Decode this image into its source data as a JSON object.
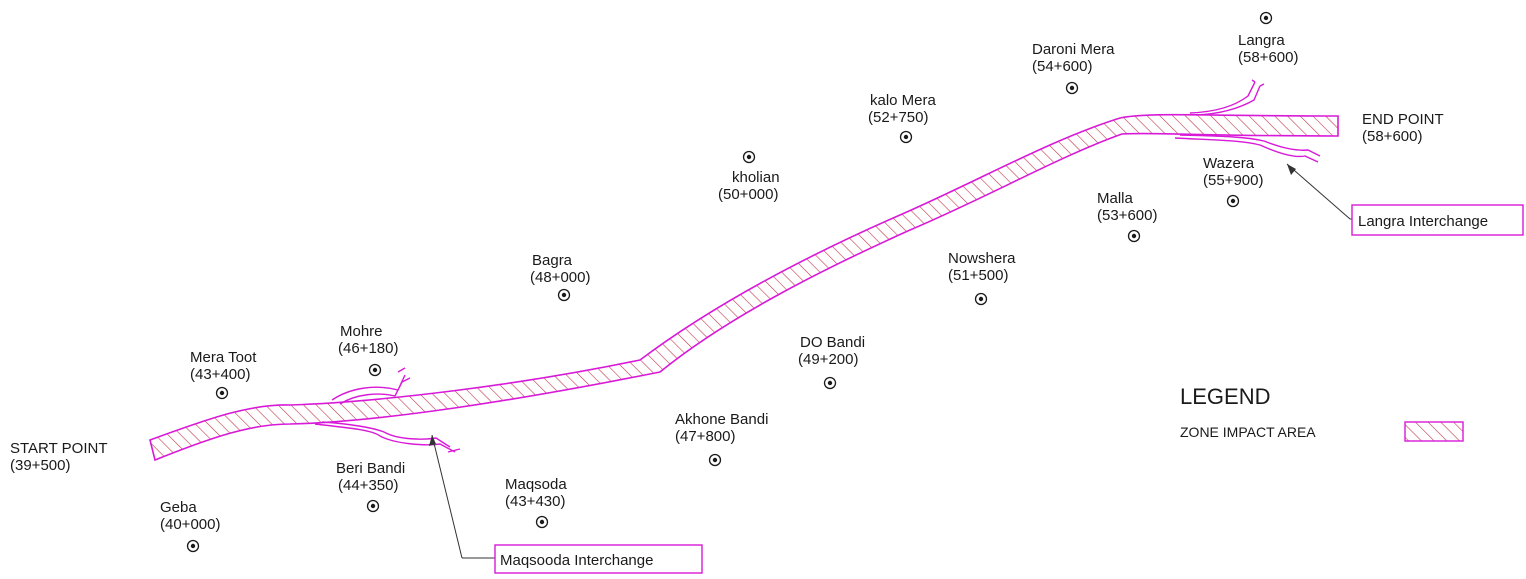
{
  "colors": {
    "alignment": "#d81ad8",
    "hatch": "#c0394a",
    "text": "#1a1a1a",
    "leader": "#333333"
  },
  "start_point": {
    "name": "START POINT",
    "chainage": "(39+500)"
  },
  "end_point": {
    "name": "END POINT",
    "chainage": "(58+600)"
  },
  "villages": [
    {
      "name": "Geba",
      "chainage": "(40+000)"
    },
    {
      "name": "Mera Toot",
      "chainage": "(43+400)"
    },
    {
      "name": "Mohre",
      "chainage": "(46+180)"
    },
    {
      "name": "Beri Bandi",
      "chainage": "(44+350)"
    },
    {
      "name": "Maqsoda",
      "chainage": "(43+430)"
    },
    {
      "name": "Bagra",
      "chainage": "(48+000)"
    },
    {
      "name": "Akhone Bandi",
      "chainage": "(47+800)"
    },
    {
      "name": "kholian",
      "chainage": "(50+000)"
    },
    {
      "name": "DO Bandi",
      "chainage": "(49+200)"
    },
    {
      "name": "kalo Mera",
      "chainage": "(52+750)"
    },
    {
      "name": "Nowshera",
      "chainage": "(51+500)"
    },
    {
      "name": "Daroni Mera",
      "chainage": "(54+600)"
    },
    {
      "name": "Malla",
      "chainage": "(53+600)"
    },
    {
      "name": "Langra",
      "chainage": "(58+600)"
    },
    {
      "name": "Wazera",
      "chainage": "(55+900)"
    }
  ],
  "interchanges": [
    {
      "label": "Maqsooda Interchange"
    },
    {
      "label": "Langra Interchange"
    }
  ],
  "legend": {
    "title": "LEGEND",
    "items": [
      {
        "label": "ZONE IMPACT AREA",
        "symbol": "hatched-rectangle"
      }
    ]
  }
}
